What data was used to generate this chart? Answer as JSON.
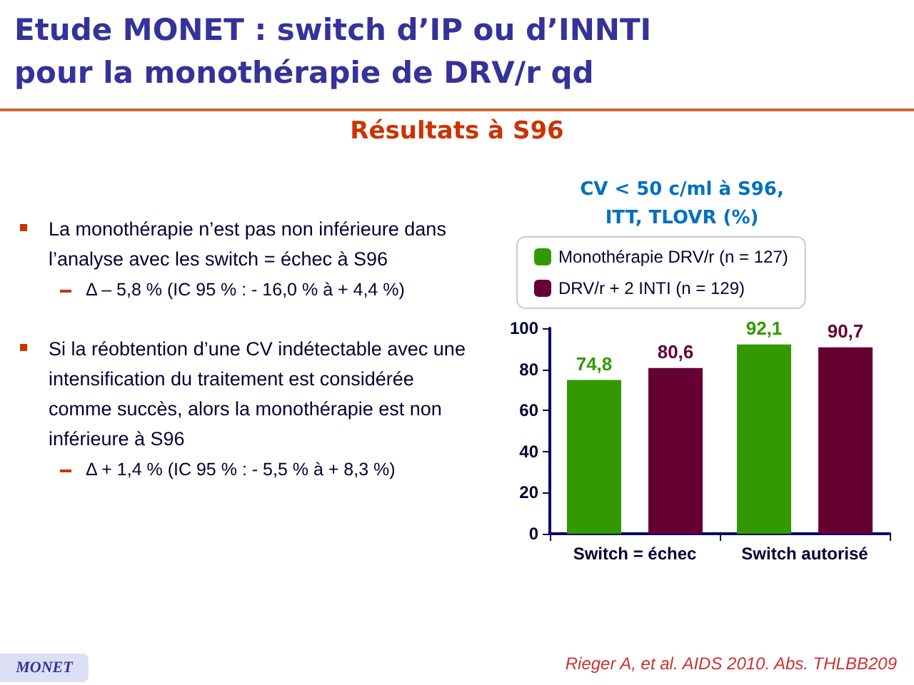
{
  "chart_data": {
    "type": "bar",
    "title": "Etude MONET : switch d’IP ou d’INNTI\npour la monothérapie de DRV/r qd",
    "subtitle": "Résultats à S96",
    "ylabel": "CV < 50 c/ml à S96,\nITT, TLOVR (%)",
    "categories": [
      "Switch = échec",
      "Switch autorisé"
    ],
    "series": [
      {
        "name": "Monothérapie DRV/r (n = 127)",
        "color": "#339900",
        "values": [
          74.8,
          92.1
        ],
        "value_labels": [
          "74,8",
          "92,1"
        ]
      },
      {
        "name": "DRV/r + 2 INTI (n = 129)",
        "color": "#660033",
        "values": [
          80.6,
          90.7
        ],
        "value_labels": [
          "80,6",
          "90,7"
        ]
      }
    ],
    "ylim": [
      0,
      100
    ],
    "yticks": [
      0,
      20,
      40,
      60,
      80,
      100
    ],
    "grid": false,
    "legend": "top",
    "annotations": [
      "La monothérapie n’est pas non inférieure dans l’analyse avec les switch = échec à S96",
      "Δ – 5,8 % (IC 95 % : - 16,0 % à + 4,4 %)",
      "Si la réobtention d’une CV indétectable avec une intensification du traitement est considérée comme succès, alors la monothérapie est non inférieure à S96",
      "Δ + 1,4 % (IC 95 % : - 5,5 % à + 8,3 %)",
      "MONET",
      "Rieger A, et al. AIDS 2010. Abs. THLBB209"
    ]
  }
}
